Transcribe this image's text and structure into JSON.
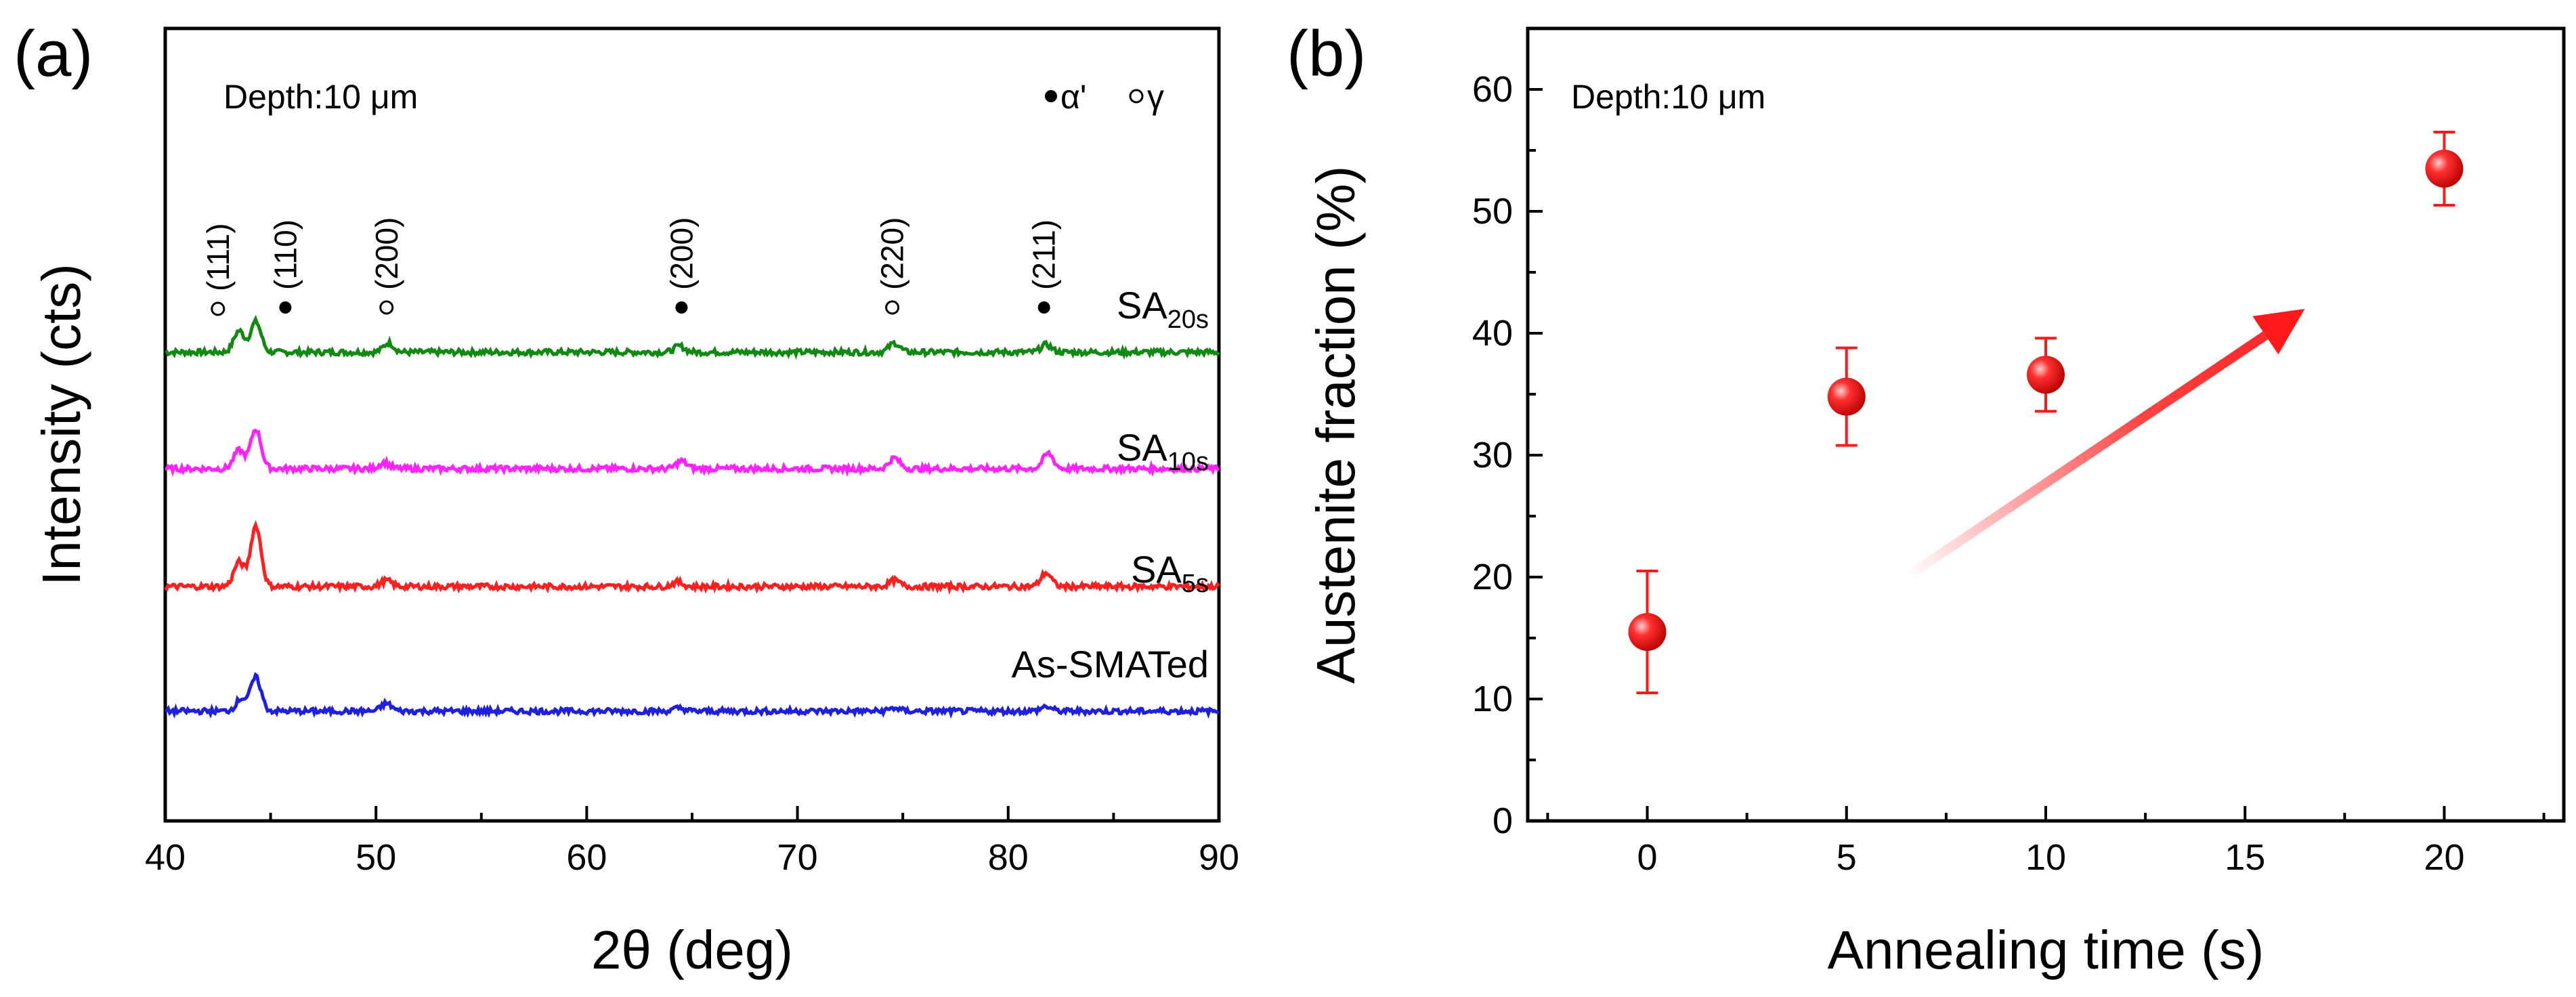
{
  "chart_data": [
    {
      "panel": "(a)",
      "type": "line",
      "title": "",
      "depth_label": "Depth:10 μm",
      "xlabel": "2θ (deg)",
      "ylabel": "Intensity (cts)",
      "xlim": [
        40,
        90
      ],
      "xticks": [
        "40",
        "50",
        "60",
        "70",
        "80",
        "90"
      ],
      "legend": {
        "alpha": "α'",
        "gamma": "γ"
      },
      "peak_markers": [
        {
          "label": "(111)",
          "x": 42.5,
          "phase": "gamma"
        },
        {
          "label": "(110)",
          "x": 45.7,
          "phase": "alpha"
        },
        {
          "label": "(200)",
          "x": 50.5,
          "phase": "gamma"
        },
        {
          "label": "(200)",
          "x": 64.5,
          "phase": "alpha"
        },
        {
          "label": "(220)",
          "x": 74.5,
          "phase": "gamma"
        },
        {
          "label": "(211)",
          "x": 81.7,
          "phase": "alpha"
        }
      ],
      "series": [
        {
          "name": "SA20s",
          "label_main": "SA",
          "label_sub": "20s",
          "color": "#118a11",
          "offset": 3,
          "peaks": [
            [
              43.5,
              0.7
            ],
            [
              44.3,
              1.0
            ],
            [
              50.6,
              0.3
            ],
            [
              64.4,
              0.2
            ],
            [
              74.6,
              0.3
            ],
            [
              81.8,
              0.25
            ]
          ]
        },
        {
          "name": "SA10s",
          "label_main": "SA",
          "label_sub": "10s",
          "color": "#ff22ff",
          "offset": 2,
          "peaks": [
            [
              43.5,
              0.6
            ],
            [
              44.3,
              1.3
            ],
            [
              50.4,
              0.2
            ],
            [
              64.5,
              0.25
            ],
            [
              74.6,
              0.35
            ],
            [
              81.9,
              0.5
            ]
          ]
        },
        {
          "name": "SA5s",
          "label_main": "SA",
          "label_sub": "5s",
          "color": "#ff1f1f",
          "offset": 1,
          "peaks": [
            [
              43.5,
              0.8
            ],
            [
              44.3,
              2.0
            ],
            [
              50.5,
              0.2
            ],
            [
              64.3,
              0.15
            ],
            [
              74.6,
              0.2
            ],
            [
              81.8,
              0.45
            ]
          ]
        },
        {
          "name": "As-SMATed",
          "label_main": "As-SMATed",
          "label_sub": "",
          "color": "#1f1fe0",
          "offset": 0,
          "peaks": [
            [
              43.6,
              0.4
            ],
            [
              44.3,
              1.1
            ],
            [
              50.5,
              0.25
            ],
            [
              64.4,
              0.1
            ],
            [
              74.6,
              0.1
            ],
            [
              81.8,
              0.15
            ]
          ]
        }
      ]
    },
    {
      "panel": "(b)",
      "type": "scatter",
      "title": "",
      "depth_label": "Depth:10 μm",
      "xlabel": "Annealing time (s)",
      "ylabel": "Austenite fraction (%)",
      "xlim": [
        -3,
        23
      ],
      "ylim": [
        0,
        65
      ],
      "xticks": [
        "0",
        "5",
        "10",
        "15",
        "20"
      ],
      "yticks": [
        "0",
        "10",
        "20",
        "30",
        "40",
        "50",
        "60"
      ],
      "points": [
        {
          "x": 0,
          "y": 15.5,
          "err": 5.0
        },
        {
          "x": 5,
          "y": 34.8,
          "err": 4.0
        },
        {
          "x": 10,
          "y": 36.6,
          "err": 3.0
        },
        {
          "x": 20,
          "y": 53.5,
          "err": 3.0
        }
      ],
      "trend_arrow": {
        "from": [
          6.5,
          20
        ],
        "to": [
          16.5,
          42
        ]
      },
      "color": "#ff1a1a"
    }
  ]
}
